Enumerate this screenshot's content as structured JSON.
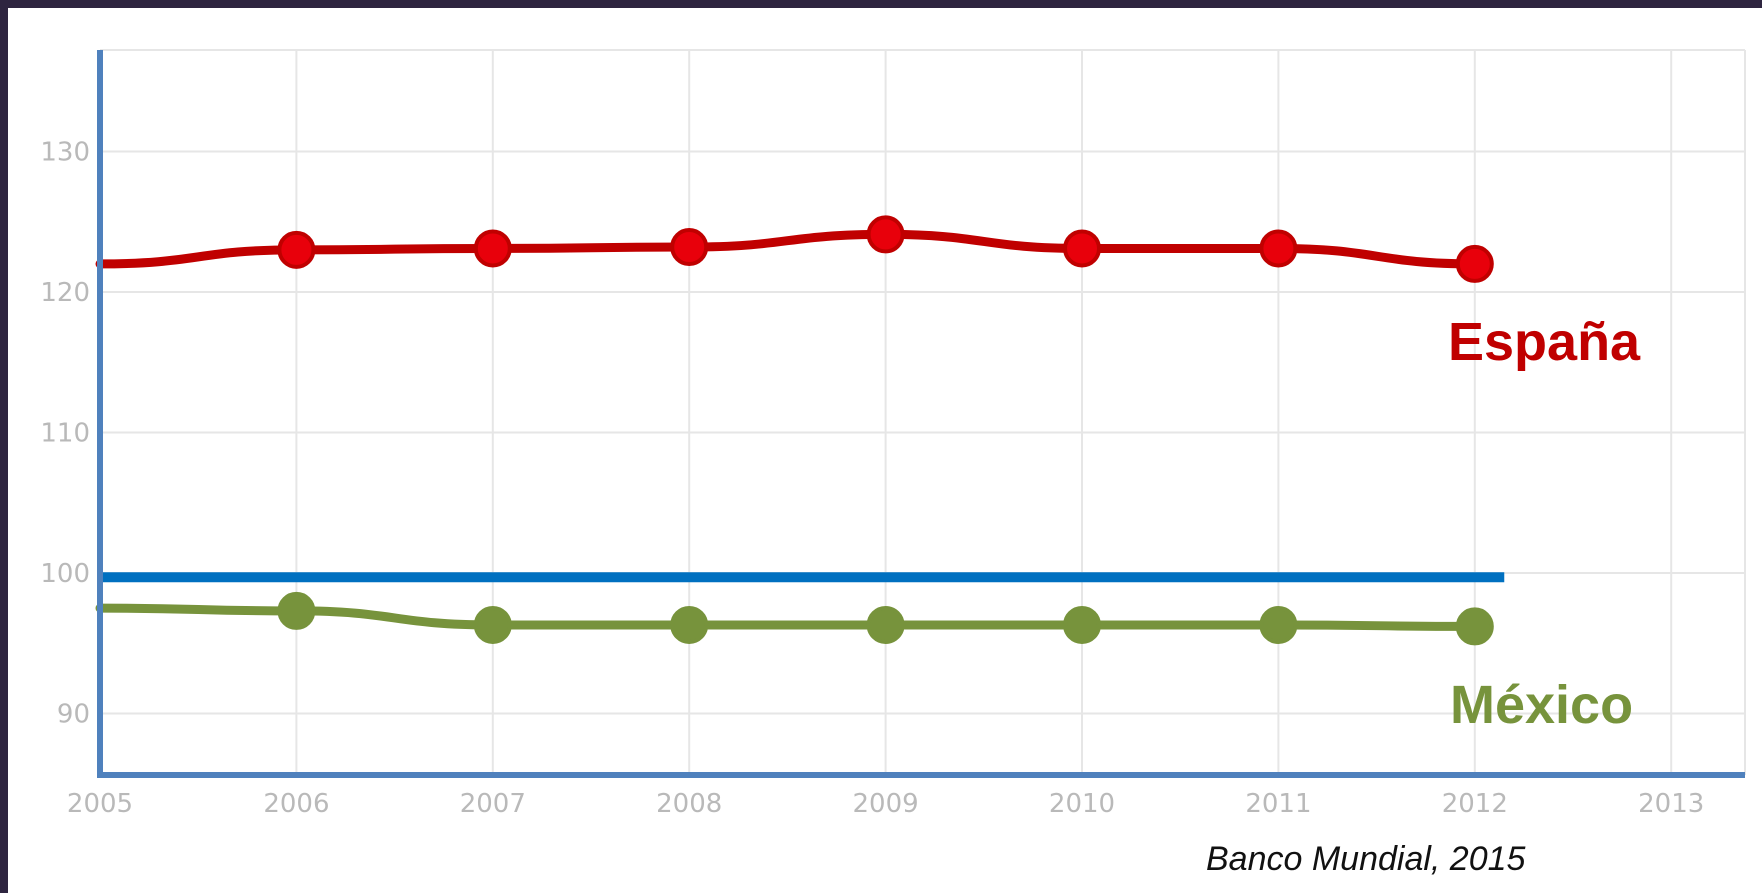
{
  "chart_data": {
    "type": "line",
    "x": [
      2006,
      2007,
      2008,
      2009,
      2010,
      2011,
      2012
    ],
    "x_axis_ticks": [
      "2005",
      "2006",
      "2007",
      "2008",
      "2009",
      "2010",
      "2011",
      "2012",
      "2013"
    ],
    "y_axis_ticks": [
      "90",
      "100",
      "110",
      "120",
      "130"
    ],
    "xlim": [
      2005,
      2013.2
    ],
    "ylim": [
      86,
      137
    ],
    "grid": true,
    "reference_line": {
      "y": 99.7,
      "color": "#0070c0"
    },
    "series": [
      {
        "name": "España",
        "color": "#c00000",
        "marker_color": "#e8000b",
        "start_value": 122,
        "values": [
          123,
          123.1,
          123.2,
          124.1,
          123.1,
          123.1,
          122
        ]
      },
      {
        "name": "México",
        "color": "#77933c",
        "marker_color": "#77933c",
        "start_value": 97.5,
        "values": [
          97.3,
          96.3,
          96.3,
          96.3,
          96.3,
          96.3,
          96.2
        ]
      }
    ],
    "source": "Banco Mundial, 2015"
  }
}
